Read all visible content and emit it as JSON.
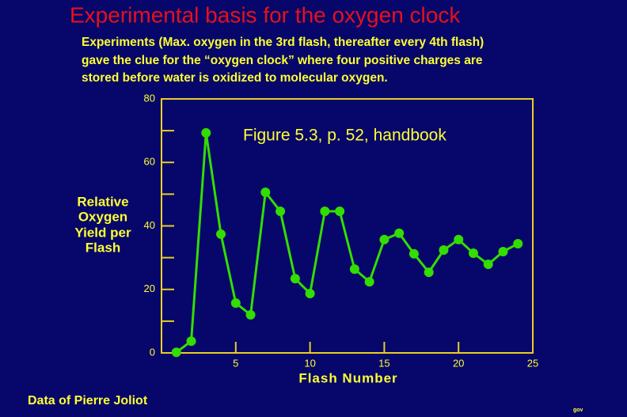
{
  "chart_data": {
    "type": "line",
    "title": "Experimental basis for the oxygen clock",
    "subtitle": [
      "Experiments (Max. oxygen in the 3rd flash, thereafter every 4th flash)",
      "gave the clue for the “oxygen clock” where four positive charges are",
      "stored before water is oxidized to molecular oxygen."
    ],
    "annotation": "Figure 5.3, p. 52, handbook",
    "footer": "Data of Pierre Joliot",
    "credit": "gov",
    "x_label": "Flash Number",
    "y_label": [
      "Relative",
      "Oxygen",
      "Yield per",
      "Flash"
    ],
    "x": [
      1,
      2,
      3,
      4,
      5,
      6,
      7,
      8,
      9,
      10,
      11,
      12,
      13,
      14,
      15,
      16,
      17,
      18,
      19,
      20,
      21,
      22,
      23,
      24
    ],
    "series": [
      {
        "color": "#33dd00",
        "values": [
          0.2,
          3.7,
          69.3,
          37.4,
          15.7,
          12,
          50.6,
          44.6,
          23.4,
          18.7,
          44.6,
          44.6,
          26.4,
          22.4,
          35.7,
          37.7,
          31.2,
          25.4,
          32.4,
          35.7,
          31.4,
          27.9,
          31.9,
          34.4
        ]
      }
    ],
    "xlim": [
      0,
      25
    ],
    "xticks": [
      5,
      10,
      15,
      20,
      25
    ],
    "ylim": [
      0,
      80
    ],
    "yticks": [
      0,
      20,
      40,
      60,
      80
    ],
    "axis_color": "#e8d020"
  }
}
